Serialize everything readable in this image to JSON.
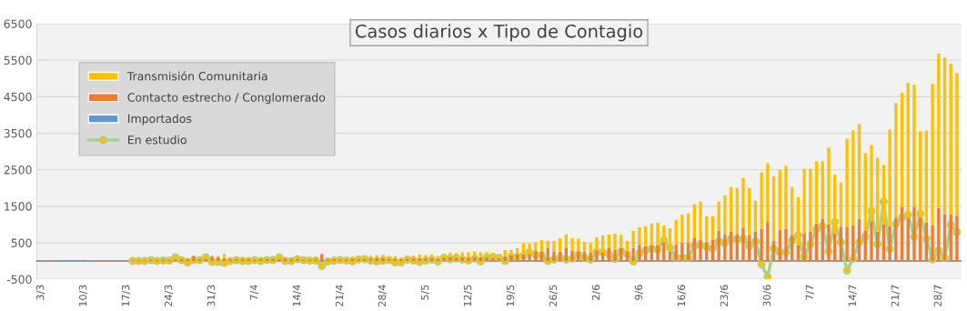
{
  "chart_data": {
    "type": "bar",
    "title": "Casos diarios x Tipo de Contagio",
    "stacked": true,
    "grid": "y",
    "legend": "top left",
    "ylim": [
      -500,
      6500
    ],
    "yticks": [
      -500,
      500,
      1500,
      2500,
      3500,
      4500,
      5500,
      6500
    ],
    "categories": [
      "3/3",
      null,
      null,
      null,
      null,
      null,
      null,
      "10/3",
      null,
      null,
      null,
      null,
      null,
      null,
      "17/3",
      null,
      null,
      null,
      null,
      null,
      null,
      "24/3",
      null,
      null,
      null,
      null,
      null,
      null,
      "31/3",
      null,
      null,
      null,
      null,
      null,
      null,
      "7/4",
      null,
      null,
      null,
      null,
      null,
      null,
      "14/4",
      null,
      null,
      null,
      null,
      null,
      null,
      "21/4",
      null,
      null,
      null,
      null,
      null,
      null,
      "28/4",
      null,
      null,
      null,
      null,
      null,
      null,
      "5/5",
      null,
      null,
      null,
      null,
      null,
      null,
      "12/5",
      null,
      null,
      null,
      null,
      null,
      null,
      "19/5",
      null,
      null,
      null,
      null,
      null,
      null,
      "26/5",
      null,
      null,
      null,
      null,
      null,
      null,
      "2/6",
      null,
      null,
      null,
      null,
      null,
      null,
      "9/6",
      null,
      null,
      null,
      null,
      null,
      null,
      "16/6",
      null,
      null,
      null,
      null,
      null,
      null,
      "23/6",
      null,
      null,
      null,
      null,
      null,
      null,
      "30/6",
      null,
      null,
      null,
      null,
      null,
      null,
      "7/7",
      null,
      null,
      null,
      null,
      null,
      null,
      "14/7",
      null,
      null,
      null,
      null,
      null,
      null,
      "21/7",
      null,
      null,
      null,
      null,
      null,
      null,
      "28/7",
      null,
      null,
      null
    ],
    "series": [
      {
        "name": "Importados",
        "color": "#5b9bd5",
        "values": [
          25,
          0,
          0,
          25,
          25,
          25,
          25,
          25,
          25,
          0,
          0,
          0,
          0,
          0,
          0,
          0,
          0,
          0,
          0,
          0,
          0,
          0,
          0,
          0,
          0,
          0,
          0,
          0,
          0,
          0,
          0,
          0,
          0,
          0,
          0,
          0,
          0,
          0,
          0,
          0,
          0,
          0,
          0,
          0,
          0,
          0,
          0,
          0,
          0,
          0,
          0,
          0,
          0,
          0,
          0,
          0,
          0,
          0,
          0,
          0,
          0,
          0,
          0,
          0,
          0,
          0,
          0,
          0,
          0,
          0,
          0,
          0,
          0,
          0,
          0,
          0,
          0,
          0,
          0,
          0,
          0,
          0,
          0,
          0,
          0,
          0,
          0,
          0,
          0,
          0,
          0,
          0,
          0,
          0,
          0,
          0,
          0,
          0,
          0,
          0,
          0,
          0,
          0,
          0,
          0,
          0,
          0,
          0,
          0,
          0,
          0,
          0,
          0,
          0,
          0,
          0,
          0,
          0,
          0,
          0,
          0,
          0,
          0,
          0,
          0,
          0,
          0,
          0,
          0,
          0,
          0,
          0,
          0,
          0,
          0,
          0,
          0,
          0,
          0,
          0,
          0,
          0,
          0,
          0,
          0,
          0,
          0,
          0,
          0,
          0,
          0
        ]
      },
      {
        "name": "Contacto estrecho / Conglomerado",
        "color": "#ed7d31",
        "values": [
          0,
          0,
          0,
          0,
          0,
          0,
          0,
          0,
          0,
          15,
          15,
          15,
          15,
          15,
          15,
          20,
          25,
          20,
          30,
          25,
          40,
          30,
          40,
          50,
          60,
          130,
          50,
          60,
          130,
          100,
          80,
          60,
          50,
          60,
          50,
          40,
          60,
          50,
          60,
          50,
          70,
          60,
          60,
          30,
          40,
          45,
          190,
          45,
          50,
          40,
          45,
          60,
          50,
          60,
          70,
          80,
          80,
          60,
          60,
          50,
          60,
          70,
          80,
          70,
          80,
          60,
          90,
          100,
          90,
          100,
          100,
          110,
          100,
          100,
          90,
          70,
          130,
          160,
          175,
          175,
          190,
          290,
          260,
          350,
          250,
          260,
          350,
          280,
          260,
          260,
          225,
          290,
          240,
          350,
          315,
          350,
          260,
          360,
          440,
          410,
          425,
          425,
          510,
          260,
          460,
          510,
          510,
          625,
          575,
          525,
          575,
          825,
          730,
          800,
          740,
          900,
          700,
          800,
          880,
          1075,
          550,
          860,
          880,
          715,
          425,
          760,
          800,
          1025,
          1160,
          1000,
          760,
          940,
          940,
          980,
          1150,
          825,
          1090,
          800,
          1000,
          950,
          1190,
          1490,
          1175,
          1490,
          1190,
          1050,
          970,
          1450,
          1280,
          1275,
          1240
        ]
      },
      {
        "name": "Transmisión Comunitaria",
        "color": "#ffc000",
        "values": [
          0,
          0,
          0,
          0,
          0,
          0,
          0,
          0,
          0,
          0,
          0,
          0,
          0,
          0,
          0,
          10,
          10,
          15,
          15,
          10,
          null,
          15,
          null,
          20,
          30,
          20,
          30,
          30,
          20,
          40,
          120,
          40,
          40,
          50,
          40,
          30,
          40,
          40,
          30,
          null,
          40,
          30,
          40,
          30,
          40,
          45,
          null,
          45,
          50,
          40,
          45,
          70,
          null,
          60,
          70,
          80,
          90,
          60,
          70,
          50,
          70,
          80,
          100,
          90,
          100,
          80,
          110,
          130,
          120,
          140,
          140,
          150,
          140,
          140,
          130,
          90,
          170,
          140,
          175,
          315,
          285,
          235,
          315,
          200,
          300,
          365,
          380,
          345,
          355,
          265,
          265,
          360,
          460,
          375,
          435,
          365,
          290,
          465,
          485,
          540,
          600,
          625,
          465,
          640,
          665,
          765,
          790,
          925,
          1050,
          700,
          650,
          800,
          1070,
          1225,
          1260,
          1375,
          1300,
          850,
          1545,
          1600,
          1775,
          1640,
          1720,
          1310,
          1325,
          1765,
          1725,
          1700,
          1565,
          2100,
          1615,
          1210,
          2410,
          2595,
          2600,
          2125,
          2085,
          2025,
          1625,
          2650,
          3135,
          3110,
          3700,
          3335,
          2360,
          2525,
          3880,
          4225,
          4295,
          4125,
          3910
        ]
      },
      {
        "name": "En estudio",
        "type": "line",
        "color": "#a9d18e",
        "marker": "circle",
        "line_style": "solid",
        "values": [
          null,
          null,
          null,
          null,
          null,
          null,
          null,
          null,
          null,
          null,
          null,
          null,
          null,
          null,
          null,
          0,
          0,
          0,
          25,
          0,
          15,
          15,
          100,
          25,
          -35,
          25,
          25,
          100,
          -25,
          -25,
          -50,
          0,
          25,
          0,
          0,
          25,
          0,
          25,
          25,
          100,
          0,
          0,
          50,
          25,
          10,
          15,
          -140,
          -10,
          10,
          25,
          15,
          -10,
          40,
          50,
          10,
          -10,
          10,
          25,
          -35,
          -35,
          40,
          10,
          -25,
          10,
          40,
          -10,
          90,
          50,
          75,
          40,
          15,
          65,
          -10,
          100,
          115,
          90,
          0,
          110,
          110,
          140,
          240,
          165,
          150,
          0,
          40,
          90,
          40,
          65,
          175,
          90,
          40,
          240,
          240,
          190,
          60,
          265,
          190,
          -10,
          215,
          290,
          340,
          315,
          565,
          360,
          90,
          90,
          90,
          415,
          440,
          390,
          335,
          535,
          490,
          610,
          590,
          615,
          415,
          535,
          -85,
          -435,
          340,
          240,
          240,
          565,
          700,
          115,
          465,
          865,
          950,
          265,
          1065,
          515,
          -260,
          65,
          515,
          665,
          1365,
          465,
          1625,
          335,
          1015,
          1190,
          1265,
          665,
          1290,
          615,
          40,
          290,
          90,
          990,
          790
        ]
      }
    ]
  }
}
